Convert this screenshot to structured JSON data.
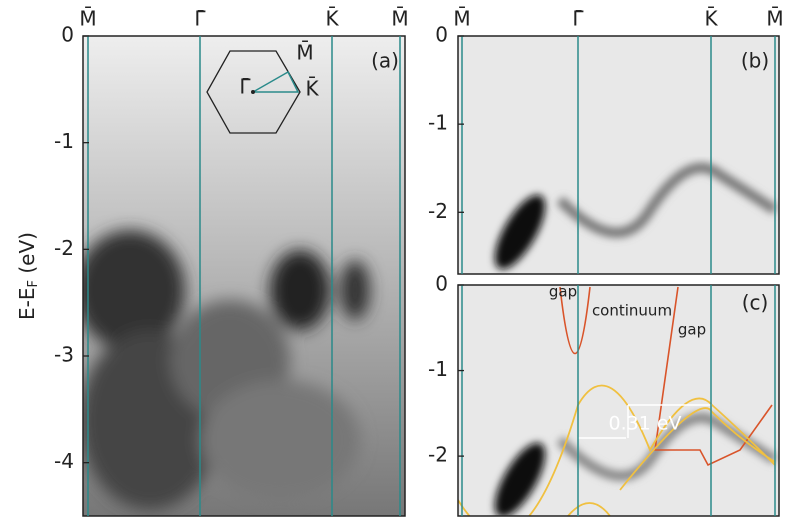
{
  "y_axis_label": {
    "main": "E-E",
    "sub": "F",
    "unit": "(eV)"
  },
  "panels": [
    {
      "label": "(a)",
      "k_points": [
        "M̄",
        "Γ̄",
        "K̄",
        "M̄"
      ],
      "ylim": [
        -4.5,
        0
      ],
      "yticks": [
        0,
        -1,
        -2,
        -3,
        -4
      ]
    },
    {
      "label": "(b)",
      "k_points": [
        "M̄",
        "Γ̄",
        "K̄",
        "M̄"
      ],
      "ylim": [
        -2.7,
        0
      ],
      "yticks": [
        0,
        -1,
        -2
      ]
    },
    {
      "label": "(c)",
      "ylim": [
        -2.7,
        0
      ],
      "yticks": [
        0,
        -1,
        -2
      ],
      "annotations": [
        "gap",
        "continuum",
        "gap",
        "0.31 eV"
      ]
    }
  ],
  "inset": {
    "labels": [
      "M̄",
      "Γ̄",
      "K̄"
    ]
  }
}
